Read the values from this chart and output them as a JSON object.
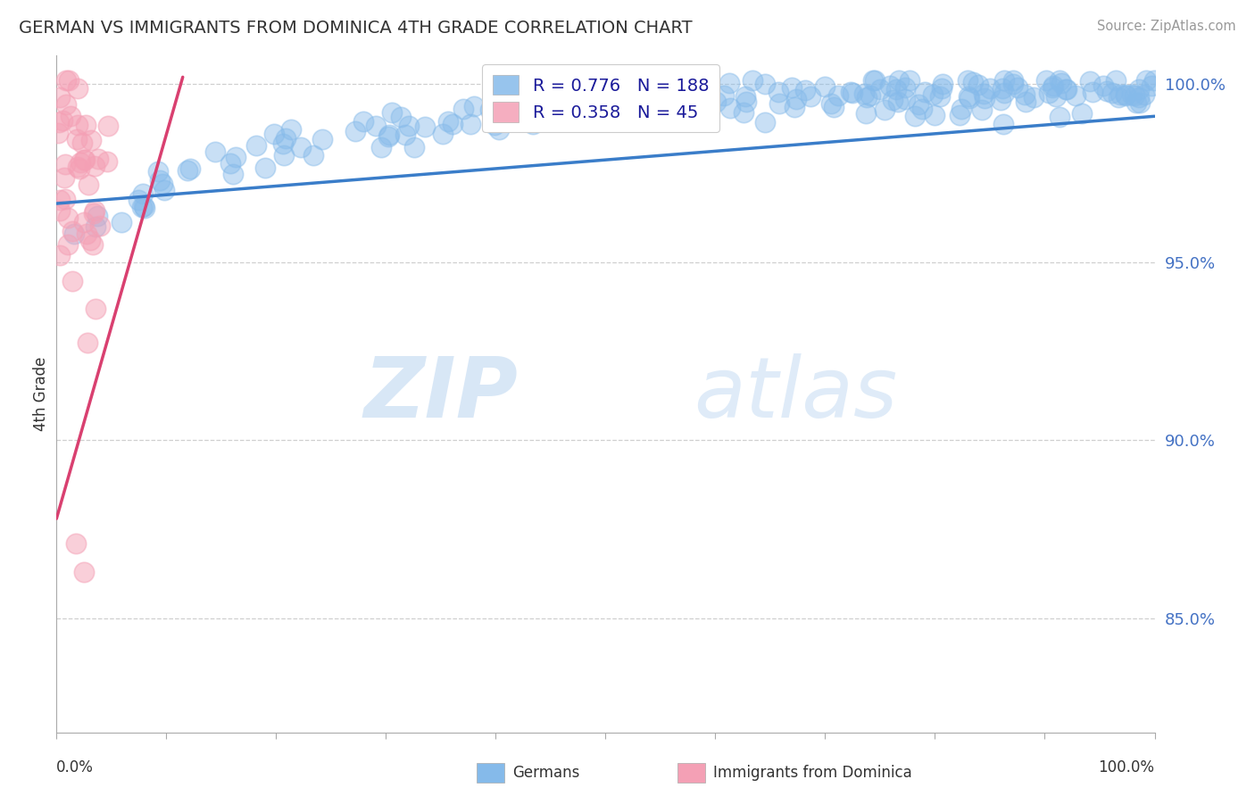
{
  "title": "GERMAN VS IMMIGRANTS FROM DOMINICA 4TH GRADE CORRELATION CHART",
  "source": "Source: ZipAtlas.com",
  "ylabel": "4th Grade",
  "xlim": [
    0.0,
    1.0
  ],
  "ylim": [
    0.818,
    1.008
  ],
  "yticks": [
    0.85,
    0.9,
    0.95,
    1.0
  ],
  "ytick_labels": [
    "85.0%",
    "90.0%",
    "95.0%",
    "100.0%"
  ],
  "blue_N": 188,
  "pink_N": 45,
  "blue_color": "#85BAEA",
  "pink_color": "#F4A0B5",
  "blue_line_color": "#3A7DC9",
  "pink_line_color": "#D94070",
  "tick_color": "#4472C4",
  "watermark_zip": "ZIP",
  "watermark_atlas": "atlas",
  "legend_R_label": "R = 0.776   N = 188",
  "legend_R2_label": "R = 0.358   N = 45",
  "background": "#ffffff",
  "grid_color": "#bbbbbb"
}
